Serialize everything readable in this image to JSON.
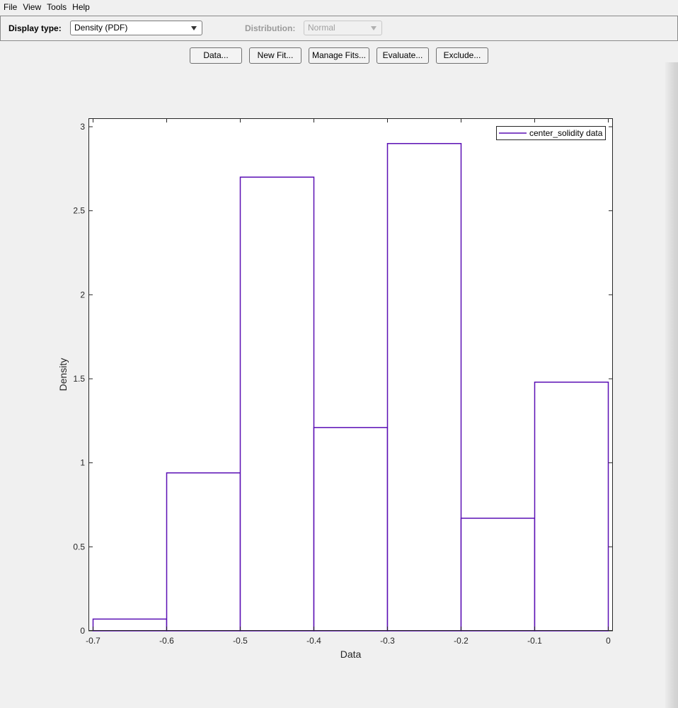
{
  "menu": {
    "items": [
      "File",
      "View",
      "Tools",
      "Help"
    ]
  },
  "controls": {
    "display_type_label": "Display type:",
    "display_type_value": "Density (PDF)",
    "distribution_label": "Distribution:",
    "distribution_value": "Normal"
  },
  "buttons": {
    "data": "Data...",
    "new_fit": "New Fit...",
    "manage_fits": "Manage Fits...",
    "evaluate": "Evaluate...",
    "exclude": "Exclude..."
  },
  "colors": {
    "series": "#5a0fb4",
    "axis": "#262626"
  },
  "chart_data": {
    "type": "bar",
    "histogram": true,
    "xlabel": "Data",
    "ylabel": "Density",
    "xlim": [
      -0.7,
      0
    ],
    "ylim": [
      0,
      3
    ],
    "xticks": [
      -0.7,
      -0.6,
      -0.5,
      -0.4,
      -0.3,
      -0.2,
      -0.1,
      0
    ],
    "xtick_labels": [
      "-0.7",
      "-0.6",
      "-0.5",
      "-0.4",
      "-0.3",
      "-0.2",
      "-0.1",
      "0"
    ],
    "yticks": [
      0,
      0.5,
      1,
      1.5,
      2,
      2.5,
      3
    ],
    "ytick_labels": [
      "0",
      "0.5",
      "1",
      "1.5",
      "2",
      "2.5",
      "3"
    ],
    "bins": [
      {
        "x0": -0.7,
        "x1": -0.6,
        "density": 0.07
      },
      {
        "x0": -0.6,
        "x1": -0.5,
        "density": 0.94
      },
      {
        "x0": -0.5,
        "x1": -0.4,
        "density": 2.7
      },
      {
        "x0": -0.4,
        "x1": -0.3,
        "density": 1.21
      },
      {
        "x0": -0.3,
        "x1": -0.2,
        "density": 2.9
      },
      {
        "x0": -0.2,
        "x1": -0.1,
        "density": 0.67
      },
      {
        "x0": -0.1,
        "x1": 0.0,
        "density": 1.48
      }
    ],
    "series": [
      {
        "name": "center_solidity data"
      }
    ],
    "legend_position": "top-right",
    "grid": false
  }
}
